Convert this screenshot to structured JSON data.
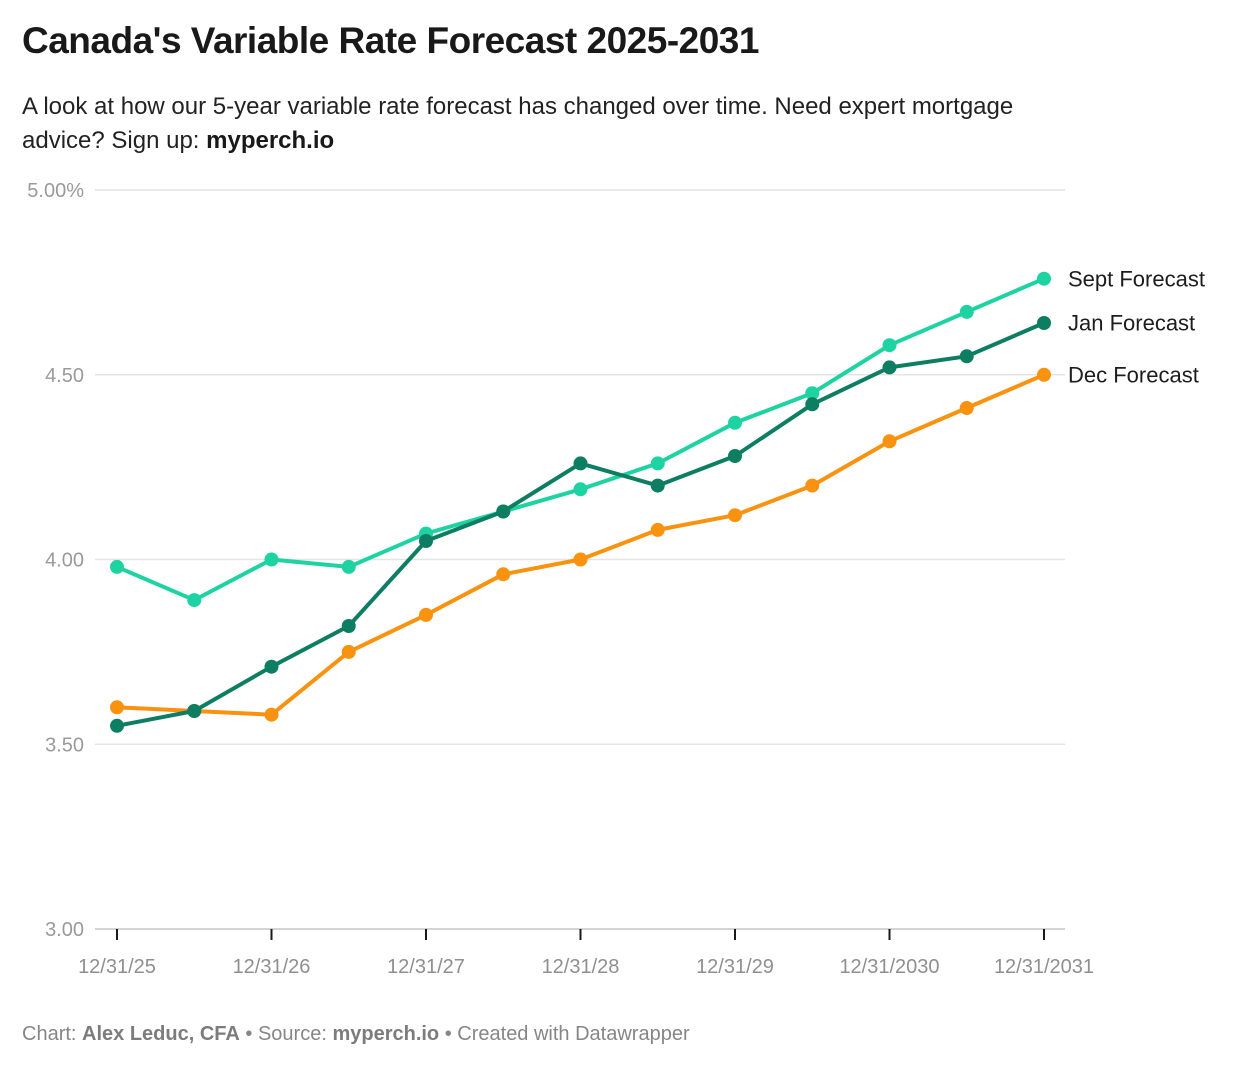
{
  "header": {
    "title": "Canada's Variable Rate Forecast 2025-2031",
    "subtitle_line1": "A look at how our 5-year variable rate forecast has changed over time. Need expert mortgage",
    "subtitle_line2_text": "advice? Sign up: ",
    "subtitle_line2_bold": "myperch.io"
  },
  "chart_data": {
    "type": "line",
    "x": [
      "12/31/25",
      "6/30/26",
      "12/31/26",
      "6/30/27",
      "12/31/27",
      "6/30/28",
      "12/31/28",
      "6/30/29",
      "12/31/29",
      "6/30/30",
      "12/31/2030",
      "6/30/31",
      "12/31/2031"
    ],
    "x_tick_labels": [
      "12/31/25",
      "12/31/26",
      "12/31/27",
      "12/31/28",
      "12/31/29",
      "12/31/2030",
      "12/31/2031"
    ],
    "x_tick_indices": [
      0,
      2,
      4,
      6,
      8,
      10,
      12
    ],
    "series": [
      {
        "name": "Sept Forecast",
        "color": "#1ed3a2",
        "values": [
          3.98,
          3.89,
          4.0,
          3.98,
          4.07,
          4.13,
          4.19,
          4.26,
          4.37,
          4.45,
          4.58,
          4.67,
          4.76
        ]
      },
      {
        "name": "Jan Forecast",
        "color": "#0e7e63",
        "values": [
          3.55,
          3.59,
          3.71,
          3.82,
          4.05,
          4.13,
          4.26,
          4.2,
          4.28,
          4.42,
          4.52,
          4.55,
          4.64
        ]
      },
      {
        "name": "Dec Forecast",
        "color": "#f8920f",
        "values": [
          3.6,
          3.59,
          3.58,
          3.75,
          3.85,
          3.96,
          4.0,
          4.08,
          4.12,
          4.2,
          4.32,
          4.41,
          4.5
        ]
      }
    ],
    "draw_order": [
      2,
      0,
      1
    ],
    "ylim": [
      3.0,
      5.0
    ],
    "yticks": [
      5.0,
      4.5,
      4.0,
      3.5,
      3.0
    ],
    "ytick_labels": [
      "5.00%",
      "4.50",
      "4.00",
      "3.50",
      "3.00"
    ],
    "grid": "horizontal",
    "legend_position": "line-end-right",
    "colors": {
      "gridline": "#e4e4e4",
      "axis_baseline": "#d4d4d4",
      "tick_mark": "#1a1a1a",
      "y_label": "#9a9a9a",
      "x_label": "#8f8f8f",
      "legend_label": "#1d1d1d"
    }
  },
  "footer": {
    "chart_label": "Chart: ",
    "chart_credit": "Alex Leduc, CFA",
    "sep1": " • ",
    "source_label": "Source: ",
    "source_credit": "myperch.io",
    "sep2": " • ",
    "created": "Created with Datawrapper"
  }
}
